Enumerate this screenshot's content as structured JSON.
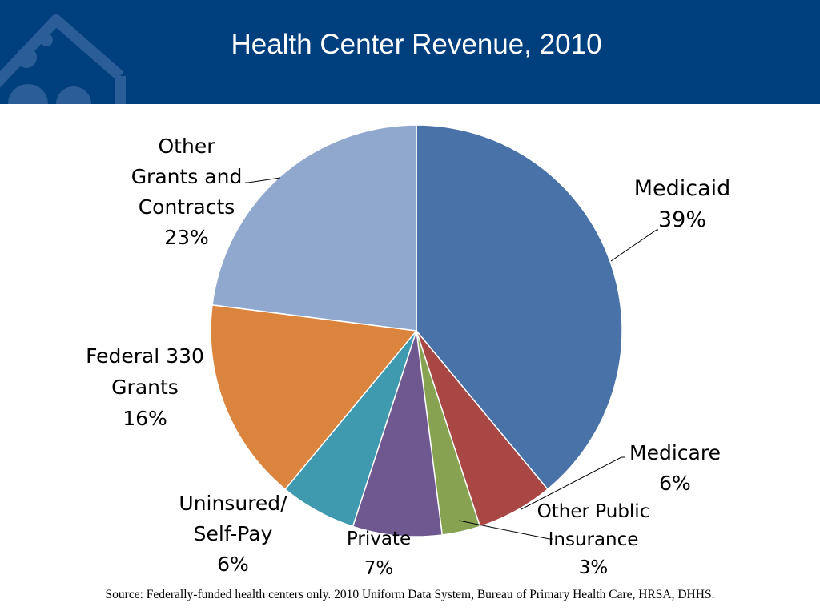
{
  "header": {
    "title": "Health Center Revenue, 2010",
    "background": "#003F7D"
  },
  "logo": {
    "icon": "house-logo-icon"
  },
  "chart_data": {
    "type": "pie",
    "title": "Health Center Revenue, 2010",
    "unit": "%",
    "slices": [
      {
        "label": "Medicaid",
        "value": 39,
        "value_label": "39%",
        "color": "#4872A8",
        "label_lines": [
          "Medicaid",
          "39%"
        ]
      },
      {
        "label": "Medicare",
        "value": 6,
        "value_label": "6%",
        "color": "#A84744",
        "label_lines": [
          "Medicare",
          "6%"
        ]
      },
      {
        "label": "Other Public Insurance",
        "value": 3,
        "value_label": "3%",
        "color": "#87A352",
        "label_lines": [
          "Other Public",
          "Insurance",
          "3%"
        ]
      },
      {
        "label": "Private",
        "value": 7,
        "value_label": "7%",
        "color": "#6F5890",
        "label_lines": [
          "Private",
          "7%"
        ]
      },
      {
        "label": "Uninsured/ Self-Pay",
        "value": 6,
        "value_label": "6%",
        "color": "#3F9AAF",
        "label_lines": [
          "Uninsured/",
          "Self-Pay",
          "6%"
        ]
      },
      {
        "label": "Federal 330 Grants",
        "value": 16,
        "value_label": "16%",
        "color": "#DA843D",
        "label_lines": [
          "Federal 330",
          "Grants",
          "16%"
        ]
      },
      {
        "label": "Other Grants and Contracts",
        "value": 23,
        "value_label": "23%",
        "color": "#91A8CE",
        "label_lines": [
          "Other",
          "Grants and",
          "Contracts",
          "23%"
        ]
      }
    ]
  },
  "source": "Source: Federally-funded health centers only.  2010 Uniform Data System, Bureau of Primary Health Care, HRSA, DHHS."
}
